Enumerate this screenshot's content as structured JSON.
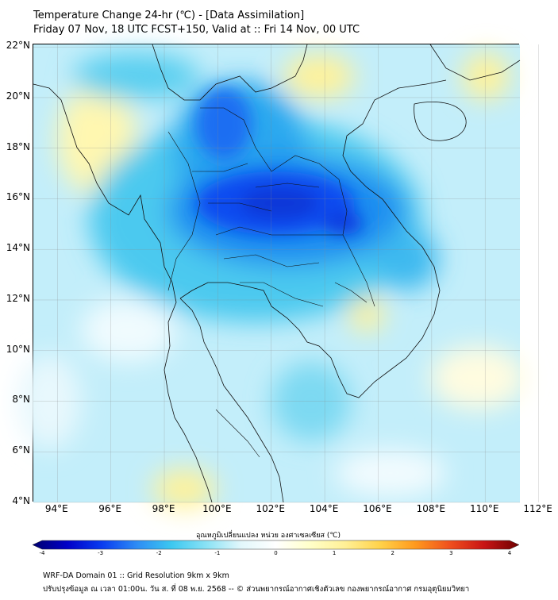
{
  "header": {
    "title_line1": "Temperature Change 24-hr (℃) - [Data Assimilation]",
    "title_line2": "Friday 07 Nov, 18 UTC FCST+150, Valid at :: Fri 14 Nov, 00 UTC"
  },
  "map": {
    "lat_labels": [
      "22°N",
      "20°N",
      "18°N",
      "16°N",
      "14°N",
      "12°N",
      "10°N",
      "8°N",
      "6°N",
      "4°N"
    ],
    "lon_labels": [
      "94°E",
      "96°E",
      "98°E",
      "100°E",
      "102°E",
      "104°E",
      "106°E",
      "108°E",
      "110°E",
      "112°E"
    ],
    "extent": {
      "lon_min": 93.1,
      "lon_max": 111.3,
      "lat_min": 4.0,
      "lat_max": 22.1
    }
  },
  "colorbar": {
    "title": "อุณหภูมิเปลี่ยนแปลง หน่วย องศาเซลเซียส (℃)",
    "ticks": [
      "-4",
      "-3",
      "-2",
      "-1",
      "0",
      "1",
      "2",
      "3",
      "4"
    ],
    "range": [
      -4,
      4
    ],
    "colors": [
      "#00006e",
      "#0000c8",
      "#0a3cf0",
      "#2d8cf5",
      "#3cc8f0",
      "#8ae2f5",
      "#e2f7fb",
      "#ffffff",
      "#ffffc8",
      "#fff096",
      "#ffd24a",
      "#ff9a1e",
      "#f0501e",
      "#c81414",
      "#6e0000"
    ]
  },
  "footer": {
    "line1": "WRF-DA Domain 01 :: Grid Resolution 9km x 9km",
    "line2": "ปรับปรุงข้อมูล ณ เวลา 01:00น. วัน ส. ที่ 08 พ.ย. 2568 -- © ส่วนพยากรณ์อากาศเชิงตัวเลข กองพยากรณ์อากาศ กรมอุตุนิยมวิทยา"
  }
}
